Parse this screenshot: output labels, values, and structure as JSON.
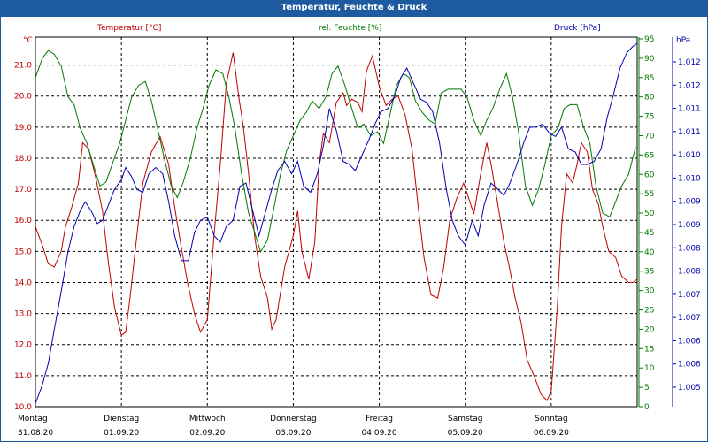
{
  "window": {
    "title": "Temperatur, Feuchte & Druck"
  },
  "colors": {
    "temperature": "#c00000",
    "humidity": "#007a00",
    "pressure": "#0000b0",
    "title_bar": "#1e5aa0",
    "grid": "#000000"
  },
  "chart_data": {
    "type": "line",
    "series_labels": {
      "temperature": "Temperatur [°C]",
      "humidity": "rel. Feuchte [%]",
      "pressure": "Druck [hPa]"
    },
    "axes": {
      "left": {
        "unit": "°C",
        "ticks": [
          "10.0",
          "11.0",
          "12.0",
          "13.0",
          "14.0",
          "15.0",
          "16.0",
          "17.0",
          "18.0",
          "19.0",
          "20.0",
          "21.0"
        ],
        "range": [
          10.0,
          21.9
        ]
      },
      "right1": {
        "unit": "%",
        "ticks": [
          "0",
          "5",
          "10",
          "15",
          "20",
          "25",
          "30",
          "35",
          "40",
          "45",
          "50",
          "55",
          "60",
          "65",
          "70",
          "75",
          "80",
          "85",
          "90",
          "95"
        ],
        "range": [
          0,
          95
        ]
      },
      "right2": {
        "unit": "hPa",
        "ticks": [
          "1.005",
          "1.006",
          "1.006",
          "1.007",
          "1.007",
          "1.008",
          "1.008",
          "1.009",
          "1.009",
          "1.010",
          "1.010",
          "1.011",
          "1.011",
          "1.012",
          "1.012"
        ]
      }
    },
    "x_labels": [
      {
        "day": "Montag",
        "date": "31.08.20"
      },
      {
        "day": "Dienstag",
        "date": "01.09.20"
      },
      {
        "day": "Mittwoch",
        "date": "02.09.20"
      },
      {
        "day": "Donnerstag",
        "date": "03.09.20"
      },
      {
        "day": "Freitag",
        "date": "04.09.20"
      },
      {
        "day": "Samstag",
        "date": "05.09.20"
      },
      {
        "day": "Sonntag",
        "date": "06.09.20"
      }
    ],
    "x_range_days": [
      0,
      7
    ],
    "series": [
      {
        "key": "temperature",
        "x": [
          0,
          0.08,
          0.15,
          0.22,
          0.3,
          0.35,
          0.42,
          0.5,
          0.55,
          0.62,
          0.7,
          0.78,
          0.85,
          0.92,
          1.0,
          1.05,
          1.1,
          1.18,
          1.25,
          1.35,
          1.45,
          1.55,
          1.6,
          1.65,
          1.7,
          1.77,
          1.85,
          1.92,
          2.0,
          2.08,
          2.15,
          2.22,
          2.3,
          2.37,
          2.42,
          2.48,
          2.55,
          2.62,
          2.7,
          2.75,
          2.8,
          2.9,
          3.0,
          3.05,
          3.1,
          3.18,
          3.25,
          3.3,
          3.35,
          3.42,
          3.5,
          3.58,
          3.62,
          3.68,
          3.75,
          3.8,
          3.85,
          3.92,
          4.0,
          4.08,
          4.15,
          4.22,
          4.3,
          4.38,
          4.45,
          4.52,
          4.6,
          4.68,
          4.75,
          4.82,
          4.9,
          4.98,
          5.03,
          5.1,
          5.18,
          5.25,
          5.3,
          5.38,
          5.45,
          5.52,
          5.58,
          5.65,
          5.72,
          5.8,
          5.88,
          5.95,
          6.0,
          6.07,
          6.12,
          6.18,
          6.25,
          6.3,
          6.35,
          6.42,
          6.48,
          6.55,
          6.6,
          6.67,
          6.75,
          6.82,
          6.9,
          6.95,
          7.0
        ],
        "values": [
          15.8,
          15.2,
          14.6,
          14.5,
          15.0,
          15.8,
          16.4,
          17.2,
          18.5,
          18.3,
          17.4,
          16.3,
          14.6,
          13.2,
          12.3,
          12.4,
          13.5,
          15.5,
          17.2,
          18.2,
          18.7,
          17.8,
          16.8,
          15.9,
          15.1,
          14.0,
          13.0,
          12.4,
          12.8,
          15.6,
          17.8,
          20.4,
          21.4,
          19.9,
          19.0,
          17.5,
          15.5,
          14.2,
          13.5,
          12.5,
          12.8,
          14.5,
          15.5,
          16.3,
          15.0,
          14.1,
          15.3,
          17.8,
          18.8,
          18.5,
          19.8,
          20.1,
          19.7,
          19.9,
          19.8,
          19.5,
          20.8,
          21.3,
          20.3,
          19.7,
          19.9,
          20.0,
          19.4,
          18.3,
          16.5,
          14.8,
          13.6,
          13.5,
          14.5,
          16.0,
          16.7,
          17.2,
          16.8,
          16.2,
          17.5,
          18.5,
          17.8,
          16.5,
          15.3,
          14.4,
          13.5,
          12.7,
          11.5,
          11.0,
          10.4,
          10.2,
          10.5,
          13.2,
          15.8,
          17.5,
          17.2,
          17.8,
          18.5,
          18.2,
          17.0,
          16.5,
          15.8,
          15.0,
          14.8,
          14.2,
          14.0,
          14.0,
          14.1
        ]
      },
      {
        "key": "humidity",
        "x": [
          0,
          0.08,
          0.15,
          0.22,
          0.3,
          0.38,
          0.45,
          0.52,
          0.6,
          0.68,
          0.75,
          0.82,
          0.9,
          0.98,
          1.05,
          1.12,
          1.2,
          1.28,
          1.35,
          1.42,
          1.5,
          1.58,
          1.65,
          1.72,
          1.8,
          1.88,
          1.95,
          2.02,
          2.1,
          2.18,
          2.25,
          2.32,
          2.4,
          2.48,
          2.55,
          2.62,
          2.7,
          2.78,
          2.85,
          2.92,
          3.0,
          3.08,
          3.15,
          3.22,
          3.3,
          3.38,
          3.45,
          3.52,
          3.6,
          3.68,
          3.75,
          3.82,
          3.9,
          3.98,
          4.05,
          4.12,
          4.2,
          4.28,
          4.35,
          4.42,
          4.5,
          4.58,
          4.65,
          4.72,
          4.8,
          4.88,
          4.95,
          5.02,
          5.1,
          5.18,
          5.25,
          5.32,
          5.4,
          5.48,
          5.55,
          5.62,
          5.7,
          5.78,
          5.85,
          5.92,
          6.0,
          6.08,
          6.15,
          6.22,
          6.3,
          6.38,
          6.45,
          6.52,
          6.6,
          6.68,
          6.75,
          6.82,
          6.9,
          6.98
        ],
        "values": [
          85,
          90,
          92,
          91,
          88,
          80,
          78,
          72,
          68,
          62,
          57,
          58,
          63,
          68,
          74,
          80,
          83,
          84,
          79,
          72,
          64,
          57,
          54,
          58,
          64,
          72,
          77,
          83,
          87,
          86,
          80,
          72,
          60,
          50,
          45,
          40,
          43,
          52,
          60,
          66,
          70,
          74,
          76,
          79,
          77,
          80,
          86,
          88,
          83,
          77,
          72,
          73,
          70,
          71,
          68,
          75,
          83,
          86,
          85,
          79,
          76,
          74,
          73,
          81,
          82,
          82,
          82,
          80,
          74,
          70,
          74,
          77,
          82,
          86,
          80,
          71,
          57,
          52,
          56,
          62,
          70,
          72,
          77,
          78,
          78,
          72,
          68,
          57,
          50,
          49,
          53,
          57,
          60,
          67
        ]
      },
      {
        "key": "pressure",
        "x": [
          0,
          0.08,
          0.15,
          0.22,
          0.3,
          0.38,
          0.45,
          0.52,
          0.58,
          0.65,
          0.72,
          0.78,
          0.85,
          0.92,
          1.0,
          1.05,
          1.12,
          1.18,
          1.25,
          1.32,
          1.4,
          1.48,
          1.55,
          1.62,
          1.7,
          1.78,
          1.85,
          1.92,
          2.0,
          2.08,
          2.15,
          2.22,
          2.3,
          2.38,
          2.45,
          2.52,
          2.6,
          2.68,
          2.75,
          2.82,
          2.9,
          2.98,
          3.05,
          3.12,
          3.2,
          3.28,
          3.35,
          3.42,
          3.5,
          3.58,
          3.65,
          3.72,
          3.8,
          3.88,
          3.95,
          4.02,
          4.1,
          4.18,
          4.25,
          4.32,
          4.4,
          4.48,
          4.55,
          4.62,
          4.7,
          4.78,
          4.85,
          4.92,
          5.0,
          5.08,
          5.15,
          5.22,
          5.3,
          5.38,
          5.45,
          5.52,
          5.6,
          5.68,
          5.75,
          5.82,
          5.9,
          5.98,
          6.05,
          6.12,
          6.2,
          6.28,
          6.35,
          6.42,
          6.5,
          6.58,
          6.65,
          6.72,
          6.8,
          6.88,
          6.95,
          7.0
        ],
        "values": [
          10.1,
          10.7,
          11.4,
          12.5,
          13.7,
          15.0,
          15.8,
          16.3,
          16.6,
          16.3,
          15.9,
          16.0,
          16.5,
          17.0,
          17.3,
          17.7,
          17.4,
          17.0,
          16.9,
          17.5,
          17.7,
          17.5,
          16.6,
          15.5,
          14.7,
          14.7,
          15.6,
          16.0,
          16.1,
          15.5,
          15.3,
          15.8,
          16.0,
          17.1,
          17.2,
          16.4,
          15.5,
          16.3,
          17.0,
          17.6,
          17.9,
          17.5,
          17.9,
          17.1,
          16.9,
          17.5,
          18.4,
          19.6,
          18.9,
          17.9,
          17.8,
          17.6,
          18.1,
          18.6,
          19.1,
          19.5,
          19.6,
          20.0,
          20.6,
          20.9,
          20.4,
          19.9,
          19.8,
          19.5,
          18.5,
          17.0,
          16.0,
          15.5,
          15.2,
          16.0,
          15.5,
          16.5,
          17.2,
          17.0,
          16.8,
          17.2,
          17.8,
          18.5,
          19.0,
          19.0,
          19.1,
          18.8,
          18.7,
          19.0,
          18.3,
          18.2,
          17.8,
          17.8,
          17.9,
          18.3,
          19.3,
          20.0,
          20.9,
          21.4,
          21.6,
          21.7
        ]
      }
    ]
  }
}
